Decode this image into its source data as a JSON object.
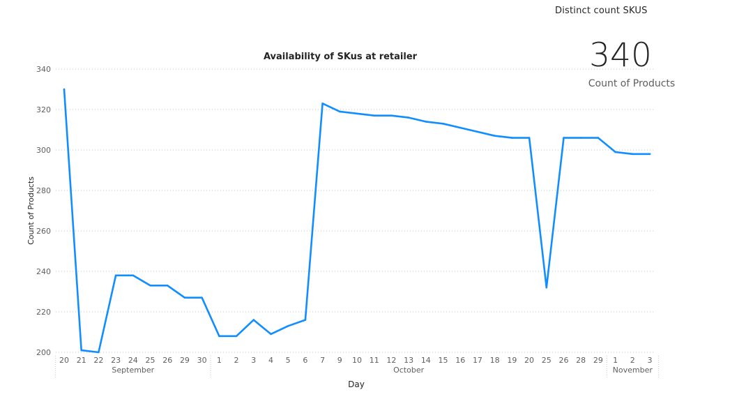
{
  "card": {
    "title": "Distinct count SKUS",
    "value": "340",
    "subtitle": "Count of Products"
  },
  "chart_data": {
    "type": "line",
    "title": "Availability of SKus at retailer",
    "xlabel": "Day",
    "ylabel": "Count of Products",
    "ylim": [
      200,
      340
    ],
    "yticks": [
      200,
      220,
      240,
      260,
      280,
      300,
      320,
      340
    ],
    "grid": true,
    "x": [
      "20",
      "21",
      "22",
      "23",
      "24",
      "25",
      "26",
      "29",
      "30",
      "1",
      "2",
      "3",
      "4",
      "5",
      "6",
      "7",
      "9",
      "10",
      "11",
      "12",
      "13",
      "14",
      "15",
      "16",
      "17",
      "18",
      "19",
      "20",
      "25",
      "26",
      "28",
      "29",
      "1",
      "2",
      "3"
    ],
    "months": [
      {
        "label": "September",
        "start": 0,
        "end": 8
      },
      {
        "label": "October",
        "start": 9,
        "end": 31
      },
      {
        "label": "November",
        "start": 32,
        "end": 34
      }
    ],
    "series": [
      {
        "color": "#118DFF",
        "values": [
          330,
          201,
          200,
          238,
          238,
          233,
          233,
          227,
          227,
          208,
          208,
          216,
          209,
          213,
          216,
          323,
          319,
          318,
          317,
          317,
          316,
          314,
          313,
          311,
          309,
          307,
          306,
          306,
          232,
          306,
          306,
          306,
          299,
          298,
          298
        ]
      }
    ]
  }
}
